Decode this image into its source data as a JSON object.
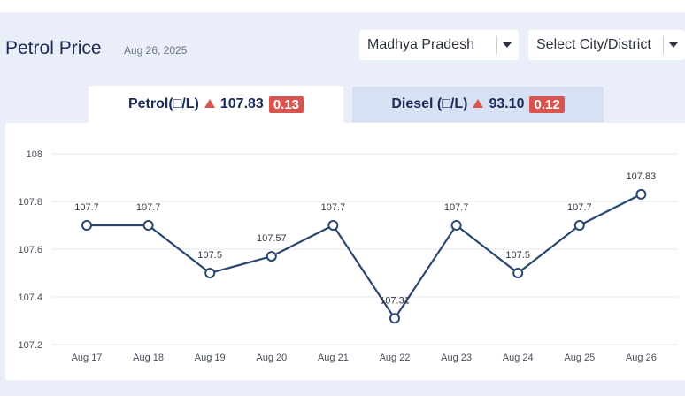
{
  "header": {
    "title": "Petrol Price",
    "date": "Aug 26, 2025"
  },
  "filters": {
    "state": "Madhya Pradesh",
    "city": "Select City/District"
  },
  "tabs": {
    "petrol": {
      "label": "Petrol(□/L)",
      "price": "107.83",
      "change": "0.13"
    },
    "diesel": {
      "label": "Diesel (□/L)",
      "price": "93.10",
      "change": "0.12"
    }
  },
  "colors": {
    "line": "#2b4770",
    "accent_up": "#d9534f",
    "grid": "#e3e6ec"
  },
  "chart_data": {
    "type": "line",
    "categories": [
      "Aug 17",
      "Aug 18",
      "Aug 19",
      "Aug 20",
      "Aug 21",
      "Aug 22",
      "Aug 23",
      "Aug 24",
      "Aug 25",
      "Aug 26"
    ],
    "series": [
      {
        "values": [
          107.7,
          107.7,
          107.5,
          107.57,
          107.7,
          107.31,
          107.7,
          107.5,
          107.7,
          107.83
        ],
        "labels": [
          "107.7",
          "107.7",
          "107.5",
          "107.57",
          "107.7",
          "107.31",
          "107.7",
          "107.5",
          "107.7",
          "107.83"
        ]
      }
    ],
    "yticks": [
      "108",
      "107.8",
      "107.6",
      "107.4",
      "107.2"
    ],
    "ylim": [
      107.2,
      108
    ],
    "grid": true,
    "title": "",
    "xlabel": "",
    "ylabel": ""
  }
}
